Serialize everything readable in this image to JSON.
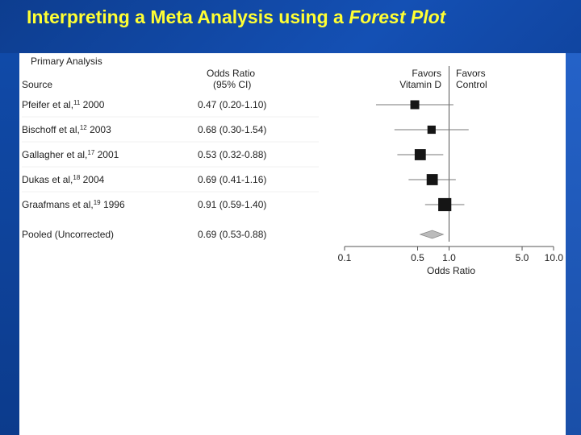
{
  "slide": {
    "title_main": "Interpreting a Meta Analysis using a ",
    "title_emph": "Forest Plot"
  },
  "chart_data": {
    "type": "forest",
    "title": "Primary Analysis",
    "column_source": "Source",
    "column_or_line1": "Odds Ratio",
    "column_or_line2": "(95% CI)",
    "favors_left_line1": "Favors",
    "favors_left_line2": "Vitamin D",
    "favors_right_line1": "Favors",
    "favors_right_line2": "Control",
    "xlabel": "Odds Ratio",
    "x_scale": "log",
    "xlim": [
      0.1,
      10.0
    ],
    "x_ticks": [
      "0.1",
      "0.5",
      "1.0",
      "5.0",
      "10.0"
    ],
    "tick_values": [
      0.1,
      0.5,
      1.0,
      5.0,
      10.0
    ],
    "studies": [
      {
        "name": "Pfeifer et al,",
        "ref": "11",
        "year": "2000",
        "ci_text": "0.47 (0.20-1.10)",
        "or": 0.47,
        "lo": 0.2,
        "hi": 1.1,
        "weight": 1.0
      },
      {
        "name": "Bischoff et al,",
        "ref": "12",
        "year": "2003",
        "ci_text": "0.68 (0.30-1.54)",
        "or": 0.68,
        "lo": 0.3,
        "hi": 1.54,
        "weight": 0.8
      },
      {
        "name": "Gallagher et al,",
        "ref": "17",
        "year": "2001",
        "ci_text": "0.53 (0.32-0.88)",
        "or": 0.53,
        "lo": 0.32,
        "hi": 0.88,
        "weight": 1.7
      },
      {
        "name": "Dukas et al,",
        "ref": "18",
        "year": "2004",
        "ci_text": "0.69 (0.41-1.16)",
        "or": 0.69,
        "lo": 0.41,
        "hi": 1.16,
        "weight": 1.7
      },
      {
        "name": "Graafmans et al,",
        "ref": "19",
        "year": "1996",
        "ci_text": "0.91 (0.59-1.40)",
        "or": 0.91,
        "lo": 0.59,
        "hi": 1.4,
        "weight": 2.3
      }
    ],
    "pooled": {
      "name": "Pooled (Uncorrected)",
      "ci_text": "0.69 (0.53-0.88)",
      "or": 0.69,
      "lo": 0.53,
      "hi": 0.88
    }
  }
}
